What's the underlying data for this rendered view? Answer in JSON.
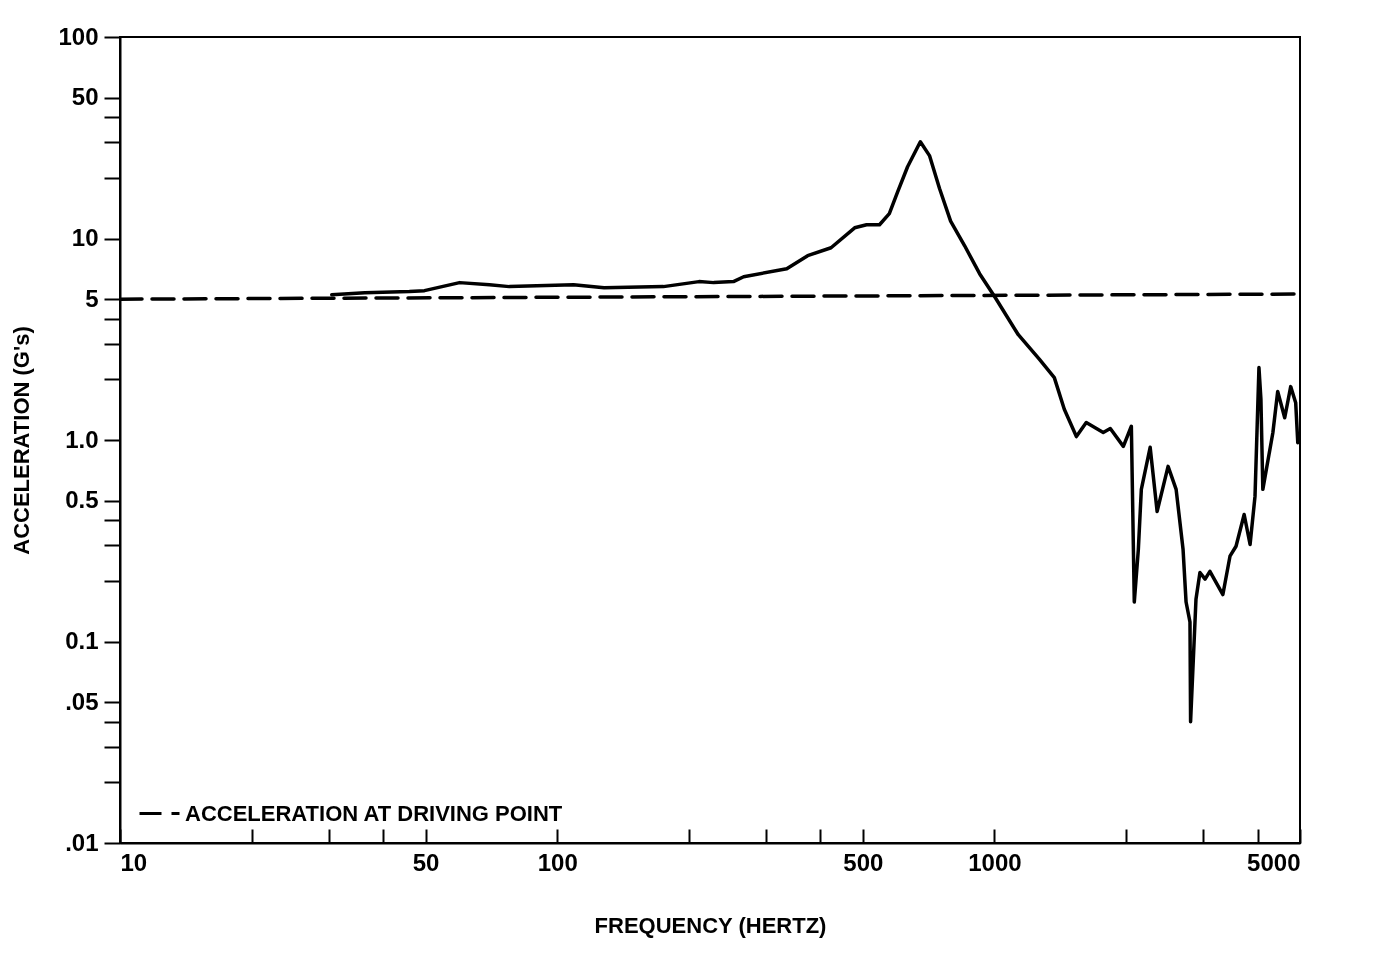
{
  "chart_data": {
    "type": "line",
    "xlabel": "FREQUENCY (HERTZ)",
    "ylabel": "ACCELERATION (G's)",
    "log": "xy",
    "grid": false,
    "legend": "bottom left",
    "xlim": [
      10,
      5000
    ],
    "ylim": [
      0.01,
      100
    ],
    "xticks": [
      10,
      {
        "value": 20,
        "label": null
      },
      {
        "value": 30,
        "label": null
      },
      {
        "value": 40,
        "label": null
      },
      50,
      100,
      {
        "value": 200,
        "label": null
      },
      {
        "value": 300,
        "label": null
      },
      {
        "value": 400,
        "label": null
      },
      500,
      1000,
      {
        "value": 2000,
        "label": null
      },
      {
        "value": 3000,
        "label": null
      },
      {
        "value": 4000,
        "label": null
      },
      5000
    ],
    "yticks": [
      {
        "value": 0.01,
        "label": ".01"
      },
      {
        "value": 0.02,
        "label": null
      },
      {
        "value": 0.03,
        "label": null
      },
      {
        "value": 0.04,
        "label": null
      },
      {
        "value": 0.05,
        "label": ".05"
      },
      0.1,
      {
        "value": 0.2,
        "label": null
      },
      {
        "value": 0.3,
        "label": null
      },
      {
        "value": 0.4,
        "label": null
      },
      0.5,
      {
        "value": 1,
        "label": "1.0"
      },
      {
        "value": 2,
        "label": null
      },
      {
        "value": 3,
        "label": null
      },
      {
        "value": 4,
        "label": null
      },
      5,
      10,
      {
        "value": 20,
        "label": null
      },
      {
        "value": 30,
        "label": null
      },
      {
        "value": 40,
        "label": null
      },
      50,
      100
    ],
    "series": [
      {
        "color": "#000000",
        "x": [
          30.5,
          36.3,
          45.9,
          49.7,
          59.8,
          70,
          77.7,
          109,
          128,
          175,
          211,
          228,
          253,
          267,
          335,
          374,
          423,
          479,
          510,
          546,
          575,
          601,
          633,
          677,
          711,
          749,
          794,
          855,
          925,
          1005,
          1134,
          1268,
          1371,
          1445,
          1540,
          1622,
          1774,
          1841,
          1972,
          2057,
          2089,
          2134,
          2168,
          2271,
          2356,
          2496,
          2604,
          2701,
          2744,
          2801,
          2810,
          2891,
          2952,
          3033,
          3111,
          3331,
          3458,
          3570,
          3726,
          3844,
          3945,
          4028,
          4070,
          4111,
          4335,
          4446,
          4613,
          4761,
          4888,
          4942
        ],
        "values": [
          5.26,
          5.38,
          5.45,
          5.51,
          6.04,
          5.9,
          5.77,
          5.9,
          5.7,
          5.77,
          6.11,
          6.04,
          6.11,
          6.46,
          7.08,
          8.22,
          9.0,
          11.3,
          11.7,
          11.7,
          13.3,
          17.1,
          22.7,
          30.2,
          25.7,
          17.7,
          12.2,
          9.2,
          6.69,
          5.08,
          3.33,
          2.51,
          2.04,
          1.42,
          1.04,
          1.22,
          1.09,
          1.14,
          0.93,
          1.17,
          0.157,
          0.286,
          0.569,
          0.92,
          0.442,
          0.74,
          0.569,
          0.286,
          0.157,
          0.125,
          0.04,
          0.162,
          0.22,
          0.204,
          0.223,
          0.171,
          0.265,
          0.297,
          0.427,
          0.303,
          0.525,
          2.29,
          1.59,
          0.569,
          1.09,
          1.74,
          1.29,
          1.84,
          1.53,
          0.97
        ]
      },
      {
        "name": "ACCELERATION AT DRIVING POINT",
        "color": "#000000",
        "line_style": "dashed",
        "x": [
          10,
          5000
        ],
        "values": [
          5,
          5.3
        ]
      }
    ]
  }
}
